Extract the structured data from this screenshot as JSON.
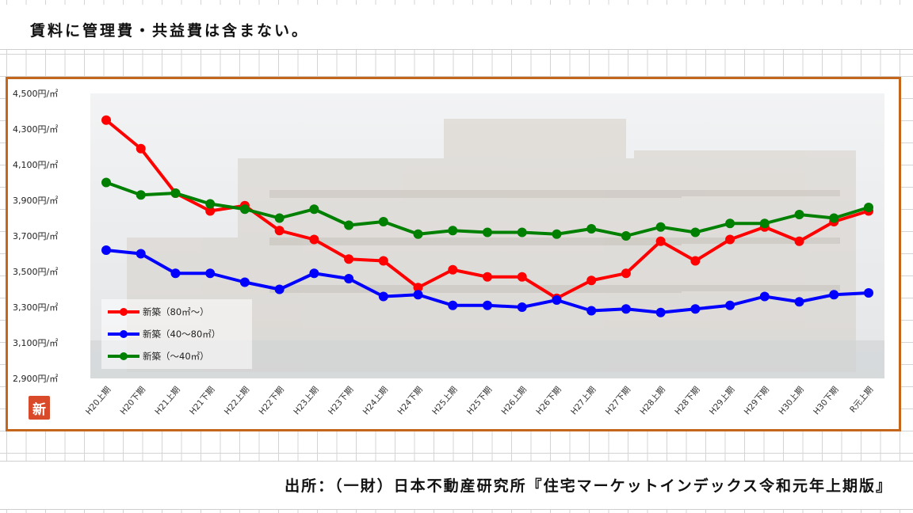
{
  "note": "賃料に管理費・共益費は含まない。",
  "source": "出所：（一財）日本不動産研究所『住宅マーケットインデックス令和元年上期版』",
  "badge": "新",
  "chart_data": {
    "type": "line",
    "title": "",
    "xlabel": "",
    "ylabel": "",
    "ylim": [
      2900,
      4500
    ],
    "yticks": [
      2900,
      3100,
      3300,
      3500,
      3700,
      3900,
      4100,
      4300,
      4500
    ],
    "ytick_labels": [
      "2,900円/㎡",
      "3,100円/㎡",
      "3,300円/㎡",
      "3,500円/㎡",
      "3,700円/㎡",
      "3,900円/㎡",
      "4,100円/㎡",
      "4,300円/㎡",
      "4,500円/㎡"
    ],
    "categories": [
      "H20上期",
      "H20下期",
      "H21上期",
      "H21下期",
      "H22上期",
      "H22下期",
      "H23上期",
      "H23下期",
      "H24上期",
      "H24下期",
      "H25上期",
      "H25下期",
      "H26上期",
      "H26下期",
      "H27上期",
      "H27下期",
      "H28上期",
      "H28下期",
      "H29上期",
      "H29下期",
      "H30上期",
      "H30下期",
      "R元上期"
    ],
    "legend_position": "bottom-left",
    "background": "faded photo of an apartment building",
    "series": [
      {
        "name": "新築（80㎡～）",
        "color": "#ff0000",
        "values": [
          4350,
          4190,
          3940,
          3840,
          3870,
          3730,
          3680,
          3570,
          3560,
          3410,
          3510,
          3470,
          3470,
          3350,
          3450,
          3490,
          3670,
          3560,
          3680,
          3750,
          3670,
          3780,
          3840
        ]
      },
      {
        "name": "新築（40～80㎡）",
        "color": "#0000ff",
        "values": [
          3620,
          3600,
          3490,
          3490,
          3440,
          3400,
          3490,
          3460,
          3360,
          3370,
          3310,
          3310,
          3300,
          3340,
          3280,
          3290,
          3270,
          3290,
          3310,
          3360,
          3330,
          3370,
          3380
        ]
      },
      {
        "name": "新築（～40㎡）",
        "color": "#008000",
        "values": [
          4000,
          3930,
          3940,
          3880,
          3850,
          3800,
          3850,
          3760,
          3780,
          3710,
          3730,
          3720,
          3720,
          3710,
          3740,
          3700,
          3750,
          3720,
          3770,
          3770,
          3820,
          3800,
          3860
        ]
      }
    ]
  }
}
